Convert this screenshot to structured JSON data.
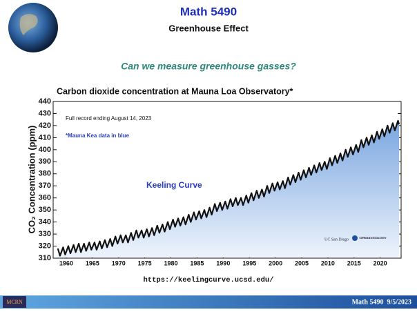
{
  "slide": {
    "title": "Math 5490",
    "subtitle": "Greenhouse Effect",
    "question": "Can we measure greenhouse gasses?",
    "url": "https://keelingcurve.ucsd.edu/",
    "footer": "Math 5490  9/5/2023",
    "logo": "MCRN",
    "credits": [
      "UC San Diego",
      "SCRIPPS INSTITUTION OF OCEANOGRAPHY"
    ]
  },
  "chart_data": {
    "type": "line",
    "title": "Carbon dioxide concentration at Mauna Loa Observatory*",
    "ylabel": "CO₂ Concentration (ppm)",
    "annotations": [
      "Full record ending August 14, 2023",
      "*Mauna Kea data in blue",
      "Keeling Curve"
    ],
    "xlim": [
      1957.5,
      2024
    ],
    "xticks": [
      1960,
      1965,
      1970,
      1975,
      1980,
      1985,
      1990,
      1995,
      2000,
      2005,
      2010,
      2015,
      2020
    ],
    "ylim": [
      310,
      440
    ],
    "yticks": [
      310,
      320,
      330,
      340,
      350,
      360,
      370,
      380,
      390,
      400,
      410,
      420,
      430,
      440
    ],
    "x": [
      1958.4,
      1958.8,
      1959.4,
      1959.8,
      1960.4,
      1960.8,
      1961.4,
      1961.8,
      1962.4,
      1962.8,
      1963.4,
      1963.8,
      1964.4,
      1964.8,
      1965.4,
      1965.8,
      1966.4,
      1966.8,
      1967.4,
      1967.8,
      1968.4,
      1968.8,
      1969.4,
      1969.8,
      1970.4,
      1970.8,
      1971.4,
      1971.8,
      1972.4,
      1972.8,
      1973.4,
      1973.8,
      1974.4,
      1974.8,
      1975.4,
      1975.8,
      1976.4,
      1976.8,
      1977.4,
      1977.8,
      1978.4,
      1978.8,
      1979.4,
      1979.8,
      1980.4,
      1980.8,
      1981.4,
      1981.8,
      1982.4,
      1982.8,
      1983.4,
      1983.8,
      1984.4,
      1984.8,
      1985.4,
      1985.8,
      1986.4,
      1986.8,
      1987.4,
      1987.8,
      1988.4,
      1988.8,
      1989.4,
      1989.8,
      1990.4,
      1990.8,
      1991.4,
      1991.8,
      1992.4,
      1992.8,
      1993.4,
      1993.8,
      1994.4,
      1994.8,
      1995.4,
      1995.8,
      1996.4,
      1996.8,
      1997.4,
      1997.8,
      1998.4,
      1998.8,
      1999.4,
      1999.8,
      2000.4,
      2000.8,
      2001.4,
      2001.8,
      2002.4,
      2002.8,
      2003.4,
      2003.8,
      2004.4,
      2004.8,
      2005.4,
      2005.8,
      2006.4,
      2006.8,
      2007.4,
      2007.8,
      2008.4,
      2008.8,
      2009.4,
      2009.8,
      2010.4,
      2010.8,
      2011.4,
      2011.8,
      2012.4,
      2012.8,
      2013.4,
      2013.8,
      2014.4,
      2014.8,
      2015.4,
      2015.8,
      2016.4,
      2016.8,
      2017.4,
      2017.8,
      2018.4,
      2018.8,
      2019.4,
      2019.8,
      2020.4,
      2020.8,
      2021.4,
      2021.8,
      2022.4,
      2022.8,
      2023.4,
      2023.6
    ],
    "series": [
      {
        "color": "#111111",
        "fill": "#9fc2ec",
        "values": [
          318,
          312,
          319,
          313,
          320,
          314,
          321,
          315,
          322,
          315,
          322,
          316,
          323,
          317,
          323,
          317,
          324,
          318,
          325,
          319,
          326,
          320,
          328,
          322,
          329,
          323,
          329,
          323,
          331,
          325,
          333,
          327,
          333,
          327,
          334,
          328,
          335,
          329,
          337,
          331,
          338,
          332,
          340,
          334,
          342,
          336,
          343,
          337,
          344,
          338,
          346,
          340,
          348,
          342,
          349,
          343,
          350,
          344,
          352,
          346,
          355,
          349,
          356,
          350,
          357,
          351,
          359,
          353,
          360,
          354,
          360,
          354,
          362,
          356,
          364,
          358,
          366,
          360,
          367,
          361,
          370,
          364,
          372,
          366,
          373,
          367,
          374,
          368,
          377,
          371,
          379,
          373,
          381,
          375,
          383,
          377,
          385,
          379,
          387,
          381,
          389,
          383,
          390,
          384,
          393,
          387,
          395,
          389,
          397,
          391,
          400,
          394,
          402,
          396,
          404,
          398,
          408,
          402,
          410,
          404,
          412,
          406,
          415,
          409,
          417,
          411,
          420,
          414,
          422,
          416,
          424,
          421
        ]
      }
    ]
  }
}
